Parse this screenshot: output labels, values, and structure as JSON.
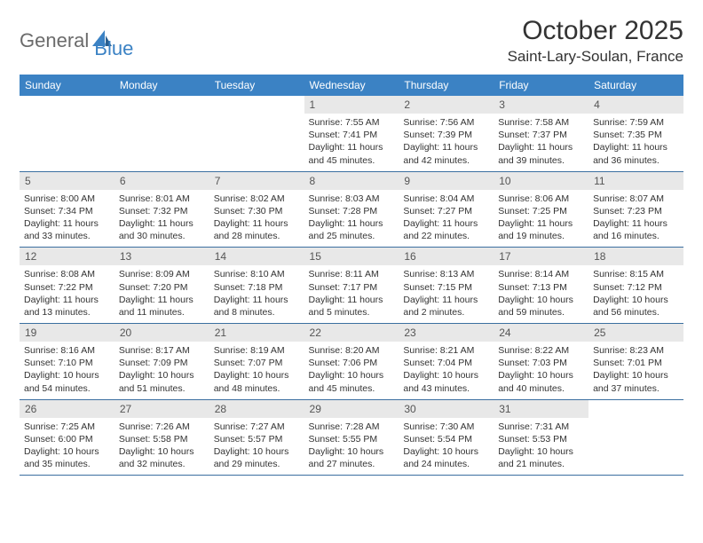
{
  "logo": {
    "part1": "General",
    "part2": "Blue"
  },
  "title": "October 2025",
  "location": "Saint-Lary-Soulan, France",
  "colors": {
    "header_bg": "#3b82c4",
    "header_text": "#ffffff",
    "daynum_bg": "#e8e8e8",
    "daynum_text": "#555555",
    "border": "#3b6fa0",
    "body_text": "#333333",
    "logo_gray": "#6b6b6b",
    "logo_blue": "#3b82c4"
  },
  "day_headers": [
    "Sunday",
    "Monday",
    "Tuesday",
    "Wednesday",
    "Thursday",
    "Friday",
    "Saturday"
  ],
  "weeks": [
    [
      {
        "empty": true
      },
      {
        "empty": true
      },
      {
        "empty": true
      },
      {
        "day": "1",
        "sunrise": "Sunrise: 7:55 AM",
        "sunset": "Sunset: 7:41 PM",
        "daylight": "Daylight: 11 hours and 45 minutes."
      },
      {
        "day": "2",
        "sunrise": "Sunrise: 7:56 AM",
        "sunset": "Sunset: 7:39 PM",
        "daylight": "Daylight: 11 hours and 42 minutes."
      },
      {
        "day": "3",
        "sunrise": "Sunrise: 7:58 AM",
        "sunset": "Sunset: 7:37 PM",
        "daylight": "Daylight: 11 hours and 39 minutes."
      },
      {
        "day": "4",
        "sunrise": "Sunrise: 7:59 AM",
        "sunset": "Sunset: 7:35 PM",
        "daylight": "Daylight: 11 hours and 36 minutes."
      }
    ],
    [
      {
        "day": "5",
        "sunrise": "Sunrise: 8:00 AM",
        "sunset": "Sunset: 7:34 PM",
        "daylight": "Daylight: 11 hours and 33 minutes."
      },
      {
        "day": "6",
        "sunrise": "Sunrise: 8:01 AM",
        "sunset": "Sunset: 7:32 PM",
        "daylight": "Daylight: 11 hours and 30 minutes."
      },
      {
        "day": "7",
        "sunrise": "Sunrise: 8:02 AM",
        "sunset": "Sunset: 7:30 PM",
        "daylight": "Daylight: 11 hours and 28 minutes."
      },
      {
        "day": "8",
        "sunrise": "Sunrise: 8:03 AM",
        "sunset": "Sunset: 7:28 PM",
        "daylight": "Daylight: 11 hours and 25 minutes."
      },
      {
        "day": "9",
        "sunrise": "Sunrise: 8:04 AM",
        "sunset": "Sunset: 7:27 PM",
        "daylight": "Daylight: 11 hours and 22 minutes."
      },
      {
        "day": "10",
        "sunrise": "Sunrise: 8:06 AM",
        "sunset": "Sunset: 7:25 PM",
        "daylight": "Daylight: 11 hours and 19 minutes."
      },
      {
        "day": "11",
        "sunrise": "Sunrise: 8:07 AM",
        "sunset": "Sunset: 7:23 PM",
        "daylight": "Daylight: 11 hours and 16 minutes."
      }
    ],
    [
      {
        "day": "12",
        "sunrise": "Sunrise: 8:08 AM",
        "sunset": "Sunset: 7:22 PM",
        "daylight": "Daylight: 11 hours and 13 minutes."
      },
      {
        "day": "13",
        "sunrise": "Sunrise: 8:09 AM",
        "sunset": "Sunset: 7:20 PM",
        "daylight": "Daylight: 11 hours and 11 minutes."
      },
      {
        "day": "14",
        "sunrise": "Sunrise: 8:10 AM",
        "sunset": "Sunset: 7:18 PM",
        "daylight": "Daylight: 11 hours and 8 minutes."
      },
      {
        "day": "15",
        "sunrise": "Sunrise: 8:11 AM",
        "sunset": "Sunset: 7:17 PM",
        "daylight": "Daylight: 11 hours and 5 minutes."
      },
      {
        "day": "16",
        "sunrise": "Sunrise: 8:13 AM",
        "sunset": "Sunset: 7:15 PM",
        "daylight": "Daylight: 11 hours and 2 minutes."
      },
      {
        "day": "17",
        "sunrise": "Sunrise: 8:14 AM",
        "sunset": "Sunset: 7:13 PM",
        "daylight": "Daylight: 10 hours and 59 minutes."
      },
      {
        "day": "18",
        "sunrise": "Sunrise: 8:15 AM",
        "sunset": "Sunset: 7:12 PM",
        "daylight": "Daylight: 10 hours and 56 minutes."
      }
    ],
    [
      {
        "day": "19",
        "sunrise": "Sunrise: 8:16 AM",
        "sunset": "Sunset: 7:10 PM",
        "daylight": "Daylight: 10 hours and 54 minutes."
      },
      {
        "day": "20",
        "sunrise": "Sunrise: 8:17 AM",
        "sunset": "Sunset: 7:09 PM",
        "daylight": "Daylight: 10 hours and 51 minutes."
      },
      {
        "day": "21",
        "sunrise": "Sunrise: 8:19 AM",
        "sunset": "Sunset: 7:07 PM",
        "daylight": "Daylight: 10 hours and 48 minutes."
      },
      {
        "day": "22",
        "sunrise": "Sunrise: 8:20 AM",
        "sunset": "Sunset: 7:06 PM",
        "daylight": "Daylight: 10 hours and 45 minutes."
      },
      {
        "day": "23",
        "sunrise": "Sunrise: 8:21 AM",
        "sunset": "Sunset: 7:04 PM",
        "daylight": "Daylight: 10 hours and 43 minutes."
      },
      {
        "day": "24",
        "sunrise": "Sunrise: 8:22 AM",
        "sunset": "Sunset: 7:03 PM",
        "daylight": "Daylight: 10 hours and 40 minutes."
      },
      {
        "day": "25",
        "sunrise": "Sunrise: 8:23 AM",
        "sunset": "Sunset: 7:01 PM",
        "daylight": "Daylight: 10 hours and 37 minutes."
      }
    ],
    [
      {
        "day": "26",
        "sunrise": "Sunrise: 7:25 AM",
        "sunset": "Sunset: 6:00 PM",
        "daylight": "Daylight: 10 hours and 35 minutes."
      },
      {
        "day": "27",
        "sunrise": "Sunrise: 7:26 AM",
        "sunset": "Sunset: 5:58 PM",
        "daylight": "Daylight: 10 hours and 32 minutes."
      },
      {
        "day": "28",
        "sunrise": "Sunrise: 7:27 AM",
        "sunset": "Sunset: 5:57 PM",
        "daylight": "Daylight: 10 hours and 29 minutes."
      },
      {
        "day": "29",
        "sunrise": "Sunrise: 7:28 AM",
        "sunset": "Sunset: 5:55 PM",
        "daylight": "Daylight: 10 hours and 27 minutes."
      },
      {
        "day": "30",
        "sunrise": "Sunrise: 7:30 AM",
        "sunset": "Sunset: 5:54 PM",
        "daylight": "Daylight: 10 hours and 24 minutes."
      },
      {
        "day": "31",
        "sunrise": "Sunrise: 7:31 AM",
        "sunset": "Sunset: 5:53 PM",
        "daylight": "Daylight: 10 hours and 21 minutes."
      },
      {
        "empty": true
      }
    ]
  ]
}
